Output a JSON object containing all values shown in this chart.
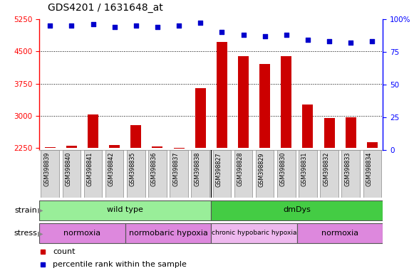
{
  "title": "GDS4201 / 1631648_at",
  "samples": [
    "GSM398839",
    "GSM398840",
    "GSM398841",
    "GSM398842",
    "GSM398835",
    "GSM398836",
    "GSM398837",
    "GSM398838",
    "GSM398827",
    "GSM398828",
    "GSM398829",
    "GSM398830",
    "GSM398831",
    "GSM398832",
    "GSM398833",
    "GSM398834"
  ],
  "counts": [
    2270,
    2310,
    3030,
    2320,
    2790,
    2280,
    2240,
    3640,
    4720,
    4380,
    4200,
    4380,
    3260,
    2940,
    2960,
    2380
  ],
  "percentile_ranks": [
    95,
    95,
    96,
    94,
    95,
    94,
    95,
    97,
    90,
    88,
    87,
    88,
    84,
    83,
    82,
    83
  ],
  "ylim_left": [
    2200,
    5250
  ],
  "ylim_right": [
    0,
    100
  ],
  "yticks_left": [
    2250,
    3000,
    3750,
    4500,
    5250
  ],
  "yticks_right": [
    0,
    25,
    50,
    75,
    100
  ],
  "bar_color": "#cc0000",
  "dot_color": "#0000cc",
  "bar_bottom": 2250,
  "strain_groups": [
    {
      "label": "wild type",
      "start": 0,
      "end": 8,
      "color": "#99ee99"
    },
    {
      "label": "dmDys",
      "start": 8,
      "end": 16,
      "color": "#44cc44"
    }
  ],
  "stress_groups": [
    {
      "label": "normoxia",
      "start": 0,
      "end": 4,
      "color": "#dd88dd"
    },
    {
      "label": "normobaric hypoxia",
      "start": 4,
      "end": 8,
      "color": "#dd88dd"
    },
    {
      "label": "chronic hypobaric hypoxia",
      "start": 8,
      "end": 12,
      "color": "#eeb8ee"
    },
    {
      "label": "normoxia",
      "start": 12,
      "end": 16,
      "color": "#dd88dd"
    }
  ],
  "legend_items": [
    {
      "label": "count",
      "color": "#cc0000"
    },
    {
      "label": "percentile rank within the sample",
      "color": "#0000cc"
    }
  ]
}
